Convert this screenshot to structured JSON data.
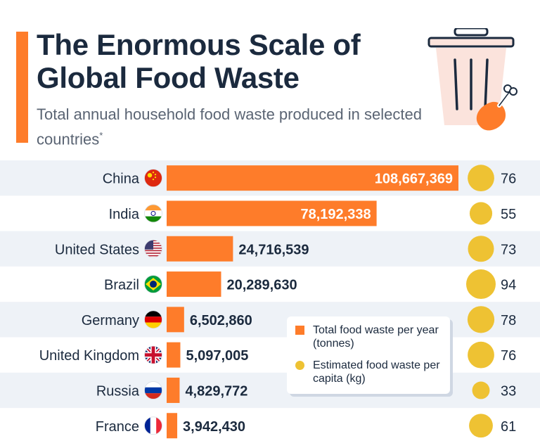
{
  "header": {
    "title": "The Enormous Scale of Global Food Waste",
    "subtitle": "Total annual household food waste produced in selected countries",
    "footnote_mark": "*"
  },
  "colors": {
    "bar": "#fe7c2a",
    "dot": "#eec233",
    "row_stripe": "#eef2f7",
    "text_dark": "#1b2a3e"
  },
  "legend": {
    "bar_label": "Total food waste per year (tonnes)",
    "dot_label": "Estimated food waste per capita (kg)"
  },
  "chart_data": {
    "type": "bar",
    "orientation": "horizontal",
    "categories": [
      "China",
      "India",
      "United States",
      "Brazil",
      "Germany",
      "United Kingdom",
      "Russia",
      "France"
    ],
    "flags": [
      "china-flag-icon",
      "india-flag-icon",
      "usa-flag-icon",
      "brazil-flag-icon",
      "germany-flag-icon",
      "uk-flag-icon",
      "russia-flag-icon",
      "france-flag-icon"
    ],
    "series": [
      {
        "name": "Total food waste per year (tonnes)",
        "values": [
          108667369,
          78192338,
          24716539,
          20289630,
          6502860,
          5097005,
          4829772,
          3942430
        ],
        "labels": [
          "108,667,369",
          "78,192,338",
          "24,716,539",
          "20,289,630",
          "6,502,860",
          "5,097,005",
          "4,829,772",
          "3,942,430"
        ]
      },
      {
        "name": "Estimated food waste per capita (kg)",
        "values": [
          76,
          55,
          73,
          94,
          78,
          76,
          33,
          61
        ],
        "labels": [
          "76",
          "55",
          "73",
          "94",
          "78",
          "76",
          "33",
          "61"
        ]
      }
    ],
    "legend_position": "right-middle",
    "grid": false
  }
}
